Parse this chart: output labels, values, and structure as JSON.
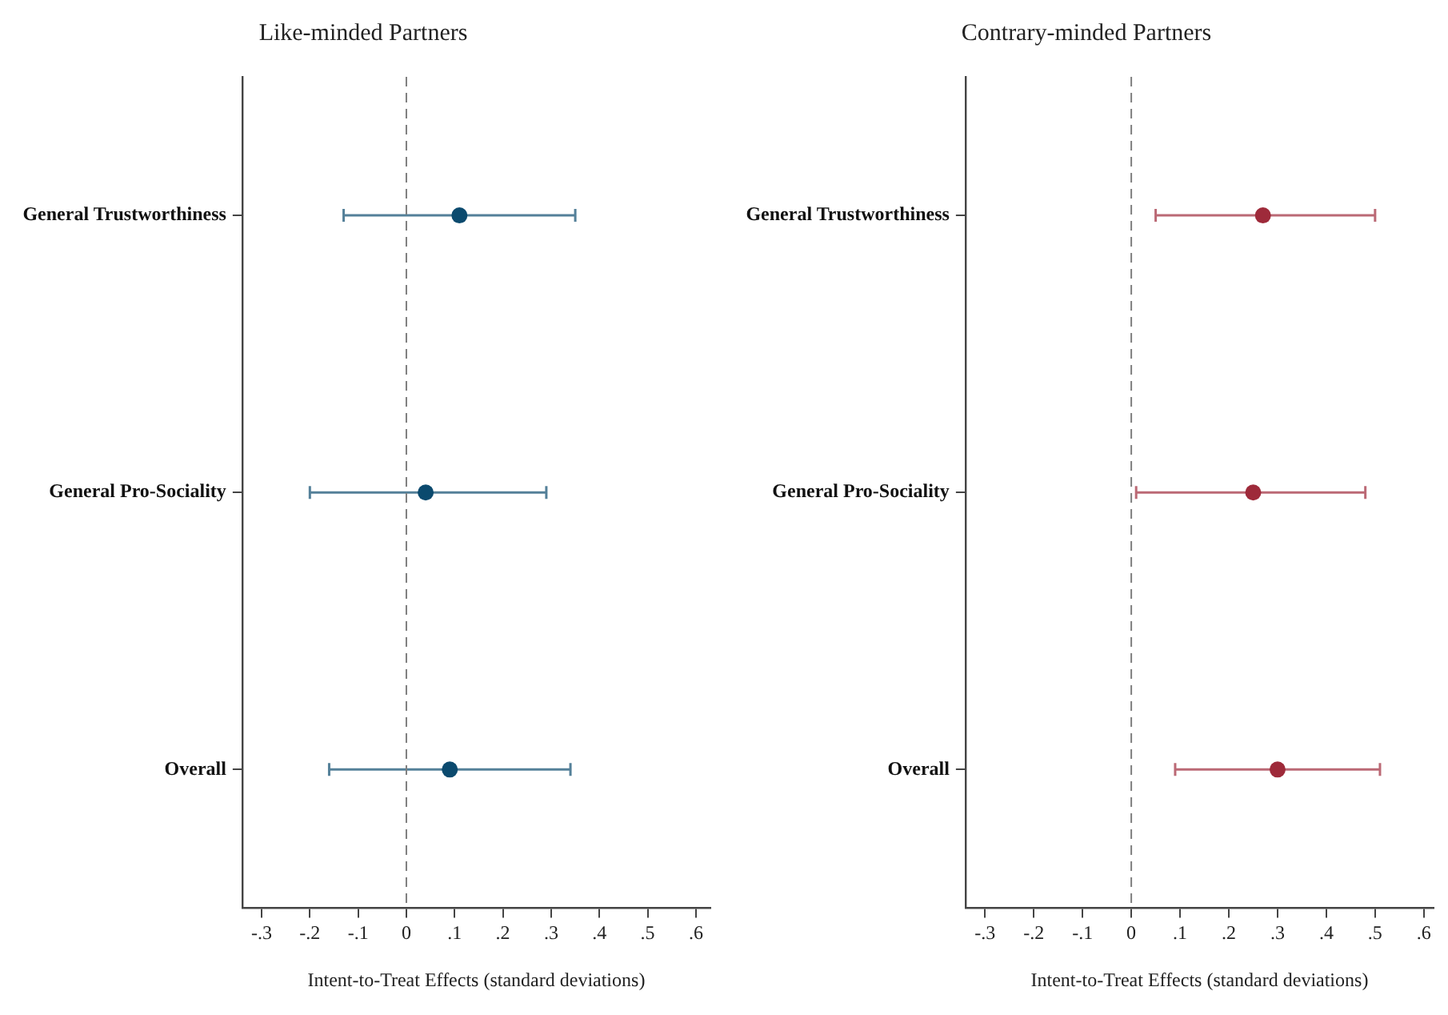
{
  "chart_data": [
    {
      "type": "scatter",
      "orientation": "horizontal",
      "title": "Like-minded Partners",
      "xlabel": "Intent-to-Treat Effects (standard deviations)",
      "categories": [
        "General Trustworthiness",
        "General Pro-Sociality",
        "Overall"
      ],
      "series": [
        {
          "color": "#0b4a6e",
          "values": [
            0.11,
            0.04,
            0.09
          ],
          "errors": [
            [
              -0.13,
              0.35
            ],
            [
              -0.2,
              0.29
            ],
            [
              -0.16,
              0.34
            ]
          ]
        }
      ],
      "xlim": [
        -0.34,
        0.63
      ],
      "xticks": [
        {
          "value": -0.3,
          "label": "-.3"
        },
        {
          "value": -0.2,
          "label": "-.2"
        },
        {
          "value": -0.1,
          "label": "-.1"
        },
        0,
        {
          "value": 0.1,
          "label": ".1"
        },
        {
          "value": 0.2,
          "label": ".2"
        },
        {
          "value": 0.3,
          "label": ".3"
        },
        {
          "value": 0.4,
          "label": ".4"
        },
        {
          "value": 0.5,
          "label": ".5"
        },
        {
          "value": 0.6,
          "label": ".6"
        }
      ],
      "ref_lines": [
        {
          "axis": "x",
          "value": 0,
          "color": "#7f7f7f",
          "line_style": "dashed"
        }
      ],
      "grid": false,
      "legend": false,
      "marker": "circle"
    },
    {
      "type": "scatter",
      "orientation": "horizontal",
      "title": "Contrary-minded Partners",
      "xlabel": "Intent-to-Treat Effects (standard deviations)",
      "categories": [
        "General Trustworthiness",
        "General Pro-Sociality",
        "Overall"
      ],
      "series": [
        {
          "color": "#9e2a3a",
          "values": [
            0.27,
            0.25,
            0.3
          ],
          "errors": [
            [
              0.05,
              0.5
            ],
            [
              0.01,
              0.48
            ],
            [
              0.09,
              0.51
            ]
          ]
        }
      ],
      "xlim": [
        -0.34,
        0.62
      ],
      "xticks": [
        {
          "value": -0.3,
          "label": "-.3"
        },
        {
          "value": -0.2,
          "label": "-.2"
        },
        {
          "value": -0.1,
          "label": "-.1"
        },
        0,
        {
          "value": 0.1,
          "label": ".1"
        },
        {
          "value": 0.2,
          "label": ".2"
        },
        {
          "value": 0.3,
          "label": ".3"
        },
        {
          "value": 0.4,
          "label": ".4"
        },
        {
          "value": 0.5,
          "label": ".5"
        },
        {
          "value": 0.6,
          "label": ".6"
        }
      ],
      "ref_lines": [
        {
          "axis": "x",
          "value": 0,
          "color": "#7f7f7f",
          "line_style": "dashed"
        }
      ],
      "grid": false,
      "legend": false,
      "marker": "circle"
    }
  ]
}
